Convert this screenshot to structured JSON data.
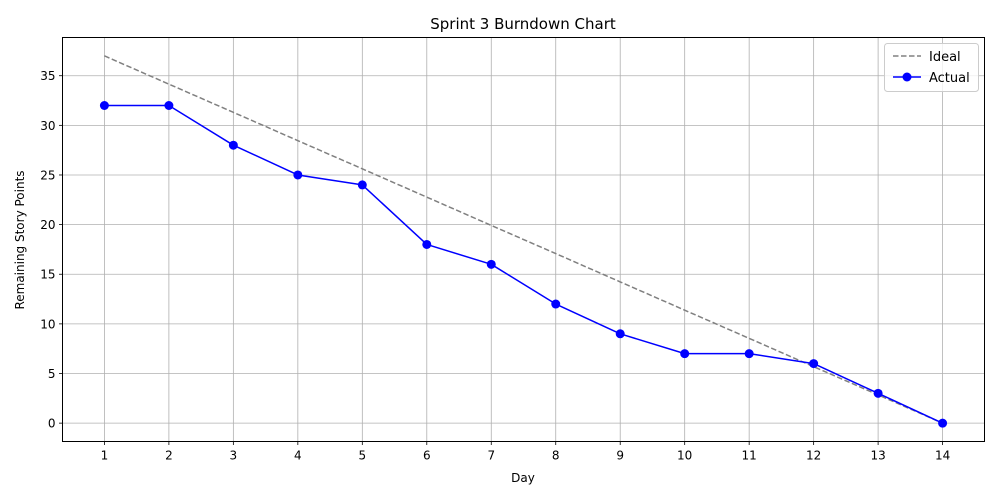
{
  "chart_data": {
    "type": "line",
    "title": "Sprint 3 Burndown Chart",
    "xlabel": "Day",
    "ylabel": "Remaining Story Points",
    "x": [
      1,
      2,
      3,
      4,
      5,
      6,
      7,
      8,
      9,
      10,
      11,
      12,
      13,
      14
    ],
    "xlim": [
      0.35,
      14.65
    ],
    "ylim": [
      -1.85,
      38.85
    ],
    "xticks": [
      1,
      2,
      3,
      4,
      5,
      6,
      7,
      8,
      9,
      10,
      11,
      12,
      13,
      14
    ],
    "yticks": [
      0,
      5,
      10,
      15,
      20,
      25,
      30,
      35
    ],
    "grid": true,
    "legend_position": "top-right",
    "series": [
      {
        "name": "Ideal",
        "style": "dashed",
        "color": "#808080",
        "marker": "none",
        "values": [
          37,
          34.15,
          31.31,
          28.46,
          25.62,
          22.77,
          19.92,
          17.08,
          14.23,
          11.38,
          8.54,
          5.69,
          2.85,
          0
        ]
      },
      {
        "name": "Actual",
        "style": "solid",
        "color": "#0000ff",
        "marker": "circle",
        "values": [
          32,
          32,
          28,
          25,
          24,
          18,
          16,
          12,
          9,
          7,
          7,
          6,
          3,
          0
        ]
      }
    ]
  }
}
